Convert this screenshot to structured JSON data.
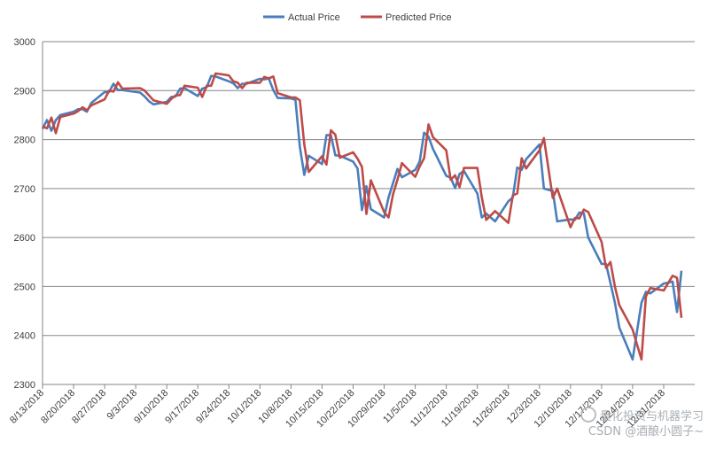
{
  "chart_data": {
    "type": "line",
    "title": "",
    "xlabel": "",
    "ylabel": "",
    "ylim": [
      2300,
      3000
    ],
    "yticks": [
      2300,
      2400,
      2500,
      2600,
      2700,
      2800,
      2900,
      3000
    ],
    "xlim": [
      "2018-08-13",
      "2019-01-07"
    ],
    "xticks": [
      "8/13/2018",
      "8/20/2018",
      "8/27/2018",
      "9/3/2018",
      "9/10/2018",
      "9/17/2018",
      "9/24/2018",
      "10/1/2018",
      "10/8/2018",
      "10/15/2018",
      "10/22/2018",
      "10/29/2018",
      "11/5/2018",
      "11/12/2018",
      "11/19/2018",
      "11/26/2018",
      "12/3/2018",
      "12/10/2018",
      "12/17/2018",
      "12/24/2018",
      "12/31/2018"
    ],
    "grid": "horizontal",
    "legend_position": "top",
    "series": [
      {
        "name": "Actual Price",
        "color": "#4a7ebb",
        "points": [
          [
            "2018-08-13",
            2822
          ],
          [
            "2018-08-14",
            2840
          ],
          [
            "2018-08-15",
            2818
          ],
          [
            "2018-08-16",
            2840
          ],
          [
            "2018-08-17",
            2850
          ],
          [
            "2018-08-20",
            2857
          ],
          [
            "2018-08-21",
            2862
          ],
          [
            "2018-08-22",
            2862
          ],
          [
            "2018-08-23",
            2857
          ],
          [
            "2018-08-24",
            2875
          ],
          [
            "2018-08-27",
            2897
          ],
          [
            "2018-08-28",
            2897
          ],
          [
            "2018-08-29",
            2914
          ],
          [
            "2018-08-30",
            2901
          ],
          [
            "2018-08-31",
            2901
          ],
          [
            "2018-09-04",
            2896
          ],
          [
            "2018-09-05",
            2888
          ],
          [
            "2018-09-06",
            2878
          ],
          [
            "2018-09-07",
            2872
          ],
          [
            "2018-09-10",
            2877
          ],
          [
            "2018-09-11",
            2887
          ],
          [
            "2018-09-12",
            2888
          ],
          [
            "2018-09-13",
            2904
          ],
          [
            "2018-09-14",
            2905
          ],
          [
            "2018-09-17",
            2889
          ],
          [
            "2018-09-18",
            2904
          ],
          [
            "2018-09-19",
            2907
          ],
          [
            "2018-09-20",
            2930
          ],
          [
            "2018-09-21",
            2929
          ],
          [
            "2018-09-24",
            2919
          ],
          [
            "2018-09-25",
            2915
          ],
          [
            "2018-09-26",
            2905
          ],
          [
            "2018-09-27",
            2914
          ],
          [
            "2018-09-28",
            2914
          ],
          [
            "2018-10-01",
            2924
          ],
          [
            "2018-10-02",
            2923
          ],
          [
            "2018-10-03",
            2925
          ],
          [
            "2018-10-04",
            2901
          ],
          [
            "2018-10-05",
            2885
          ],
          [
            "2018-10-08",
            2884
          ],
          [
            "2018-10-09",
            2881
          ],
          [
            "2018-10-10",
            2785
          ],
          [
            "2018-10-11",
            2728
          ],
          [
            "2018-10-12",
            2767
          ],
          [
            "2018-10-15",
            2750
          ],
          [
            "2018-10-16",
            2809
          ],
          [
            "2018-10-17",
            2809
          ],
          [
            "2018-10-18",
            2768
          ],
          [
            "2018-10-19",
            2767
          ],
          [
            "2018-10-22",
            2755
          ],
          [
            "2018-10-23",
            2741
          ],
          [
            "2018-10-24",
            2656
          ],
          [
            "2018-10-25",
            2705
          ],
          [
            "2018-10-26",
            2658
          ],
          [
            "2018-10-29",
            2641
          ],
          [
            "2018-10-30",
            2682
          ],
          [
            "2018-10-31",
            2711
          ],
          [
            "2018-11-01",
            2740
          ],
          [
            "2018-11-02",
            2723
          ],
          [
            "2018-11-05",
            2738
          ],
          [
            "2018-11-06",
            2755
          ],
          [
            "2018-11-07",
            2814
          ],
          [
            "2018-11-08",
            2806
          ],
          [
            "2018-11-09",
            2781
          ],
          [
            "2018-11-12",
            2726
          ],
          [
            "2018-11-13",
            2722
          ],
          [
            "2018-11-14",
            2701
          ],
          [
            "2018-11-15",
            2730
          ],
          [
            "2018-11-16",
            2736
          ],
          [
            "2018-11-19",
            2690
          ],
          [
            "2018-11-20",
            2641
          ],
          [
            "2018-11-21",
            2649
          ],
          [
            "2018-11-23",
            2633
          ],
          [
            "2018-11-26",
            2674
          ],
          [
            "2018-11-27",
            2682
          ],
          [
            "2018-11-28",
            2743
          ],
          [
            "2018-11-29",
            2738
          ],
          [
            "2018-11-30",
            2760
          ],
          [
            "2018-12-03",
            2790
          ],
          [
            "2018-12-04",
            2700
          ],
          [
            "2018-12-06",
            2695
          ],
          [
            "2018-12-07",
            2633
          ],
          [
            "2018-12-10",
            2637
          ],
          [
            "2018-12-11",
            2636
          ],
          [
            "2018-12-12",
            2651
          ],
          [
            "2018-12-13",
            2650
          ],
          [
            "2018-12-14",
            2600
          ],
          [
            "2018-12-17",
            2546
          ],
          [
            "2018-12-18",
            2546
          ],
          [
            "2018-12-19",
            2507
          ],
          [
            "2018-12-20",
            2467
          ],
          [
            "2018-12-21",
            2416
          ],
          [
            "2018-12-24",
            2351
          ],
          [
            "2018-12-26",
            2467
          ],
          [
            "2018-12-27",
            2489
          ],
          [
            "2018-12-28",
            2486
          ],
          [
            "2018-12-31",
            2506
          ],
          [
            "2019-01-02",
            2510
          ],
          [
            "2019-01-03",
            2448
          ],
          [
            "2019-01-04",
            2532
          ]
        ]
      },
      {
        "name": "Predicted Price",
        "color": "#be4b48",
        "points": [
          [
            "2018-08-13",
            2827
          ],
          [
            "2018-08-14",
            2823
          ],
          [
            "2018-08-15",
            2845
          ],
          [
            "2018-08-16",
            2813
          ],
          [
            "2018-08-17",
            2846
          ],
          [
            "2018-08-20",
            2853
          ],
          [
            "2018-08-21",
            2858
          ],
          [
            "2018-08-22",
            2866
          ],
          [
            "2018-08-23",
            2860
          ],
          [
            "2018-08-24",
            2870
          ],
          [
            "2018-08-27",
            2882
          ],
          [
            "2018-08-28",
            2900
          ],
          [
            "2018-08-29",
            2898
          ],
          [
            "2018-08-30",
            2917
          ],
          [
            "2018-08-31",
            2904
          ],
          [
            "2018-09-04",
            2905
          ],
          [
            "2018-09-05",
            2900
          ],
          [
            "2018-09-06",
            2890
          ],
          [
            "2018-09-07",
            2880
          ],
          [
            "2018-09-10",
            2873
          ],
          [
            "2018-09-11",
            2883
          ],
          [
            "2018-09-12",
            2890
          ],
          [
            "2018-09-13",
            2891
          ],
          [
            "2018-09-14",
            2910
          ],
          [
            "2018-09-17",
            2906
          ],
          [
            "2018-09-18",
            2887
          ],
          [
            "2018-09-19",
            2910
          ],
          [
            "2018-09-20",
            2910
          ],
          [
            "2018-09-21",
            2935
          ],
          [
            "2018-09-24",
            2931
          ],
          [
            "2018-09-25",
            2919
          ],
          [
            "2018-09-26",
            2916
          ],
          [
            "2018-09-27",
            2905
          ],
          [
            "2018-09-28",
            2916
          ],
          [
            "2018-10-01",
            2916
          ],
          [
            "2018-10-02",
            2928
          ],
          [
            "2018-10-03",
            2925
          ],
          [
            "2018-10-04",
            2929
          ],
          [
            "2018-10-05",
            2895
          ],
          [
            "2018-10-08",
            2886
          ],
          [
            "2018-10-09",
            2886
          ],
          [
            "2018-10-10",
            2880
          ],
          [
            "2018-10-11",
            2790
          ],
          [
            "2018-10-12",
            2734
          ],
          [
            "2018-10-15",
            2766
          ],
          [
            "2018-10-16",
            2749
          ],
          [
            "2018-10-17",
            2819
          ],
          [
            "2018-10-18",
            2810
          ],
          [
            "2018-10-19",
            2763
          ],
          [
            "2018-10-22",
            2774
          ],
          [
            "2018-10-23",
            2761
          ],
          [
            "2018-10-24",
            2744
          ],
          [
            "2018-10-25",
            2648
          ],
          [
            "2018-10-26",
            2717
          ],
          [
            "2018-10-29",
            2652
          ],
          [
            "2018-10-30",
            2641
          ],
          [
            "2018-10-31",
            2688
          ],
          [
            "2018-11-01",
            2718
          ],
          [
            "2018-11-02",
            2752
          ],
          [
            "2018-11-05",
            2724
          ],
          [
            "2018-11-06",
            2745
          ],
          [
            "2018-11-07",
            2762
          ],
          [
            "2018-11-08",
            2831
          ],
          [
            "2018-11-09",
            2805
          ],
          [
            "2018-11-12",
            2778
          ],
          [
            "2018-11-13",
            2718
          ],
          [
            "2018-11-14",
            2727
          ],
          [
            "2018-11-15",
            2703
          ],
          [
            "2018-11-16",
            2742
          ],
          [
            "2018-11-19",
            2742
          ],
          [
            "2018-11-20",
            2682
          ],
          [
            "2018-11-21",
            2636
          ],
          [
            "2018-11-23",
            2654
          ],
          [
            "2018-11-26",
            2630
          ],
          [
            "2018-11-27",
            2686
          ],
          [
            "2018-11-28",
            2690
          ],
          [
            "2018-11-29",
            2762
          ],
          [
            "2018-11-30",
            2741
          ],
          [
            "2018-12-03",
            2778
          ],
          [
            "2018-12-04",
            2803
          ],
          [
            "2018-12-06",
            2681
          ],
          [
            "2018-12-07",
            2700
          ],
          [
            "2018-12-10",
            2621
          ],
          [
            "2018-12-11",
            2640
          ],
          [
            "2018-12-12",
            2639
          ],
          [
            "2018-12-13",
            2657
          ],
          [
            "2018-12-14",
            2652
          ],
          [
            "2018-12-17",
            2591
          ],
          [
            "2018-12-18",
            2538
          ],
          [
            "2018-12-19",
            2550
          ],
          [
            "2018-12-20",
            2500
          ],
          [
            "2018-12-21",
            2462
          ],
          [
            "2018-12-24",
            2412
          ],
          [
            "2018-12-26",
            2351
          ],
          [
            "2018-12-27",
            2480
          ],
          [
            "2018-12-28",
            2497
          ],
          [
            "2018-12-31",
            2492
          ],
          [
            "2019-01-02",
            2522
          ],
          [
            "2019-01-03",
            2518
          ],
          [
            "2019-01-04",
            2436
          ]
        ]
      }
    ]
  },
  "watermark": {
    "line1": "量化投资与机器学习",
    "line2": "CSDN @酒酿小圆子~"
  }
}
